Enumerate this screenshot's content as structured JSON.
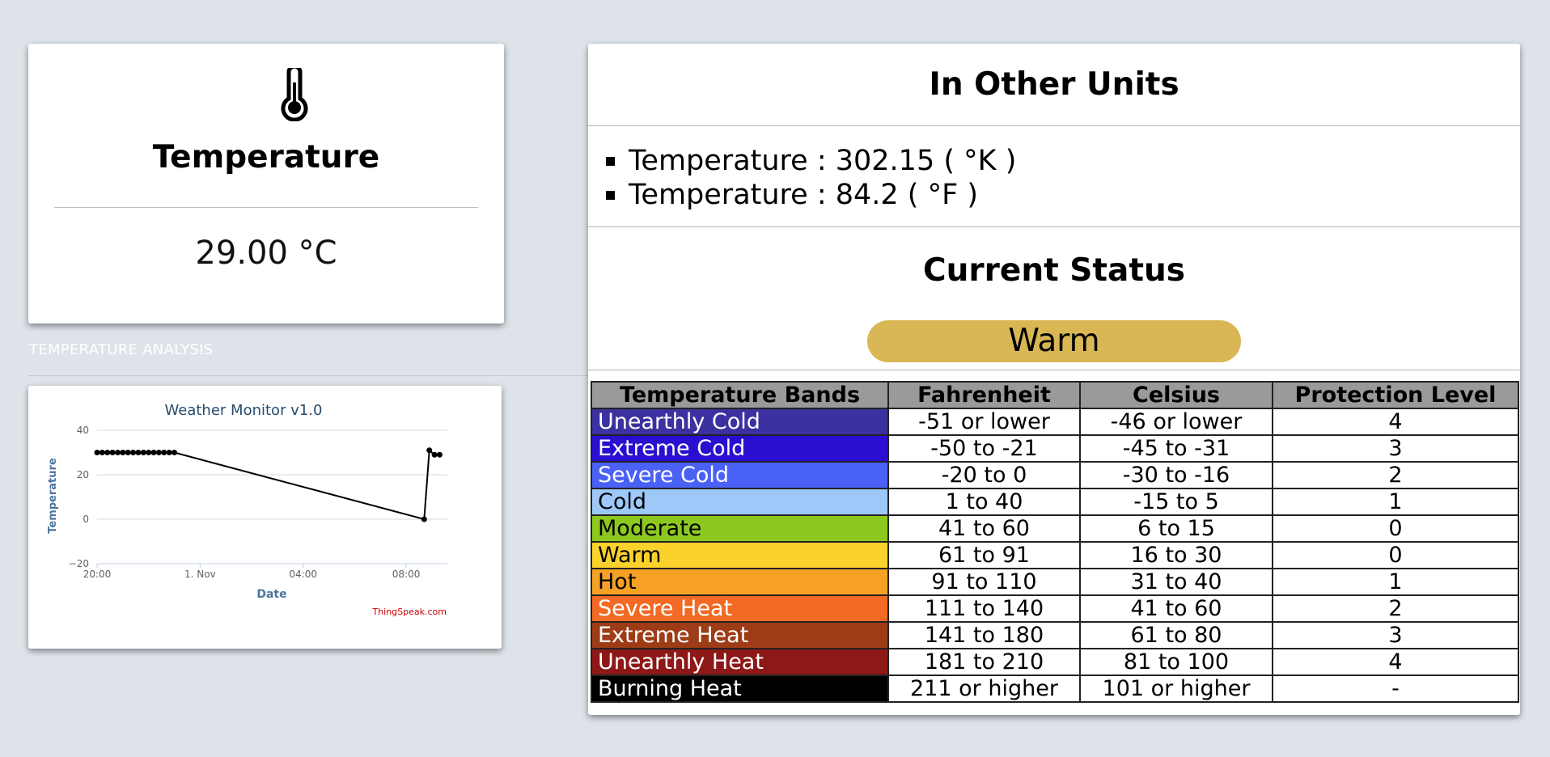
{
  "temperature_card": {
    "icon": "thermometer-icon",
    "title": "Temperature",
    "value": "29.00 °C"
  },
  "analysis": {
    "label": "TEMPERATURE ANALYSIS"
  },
  "chart_data": {
    "type": "line",
    "title": "Weather Monitor v1.0",
    "xlabel": "Date",
    "ylabel": "Temperature",
    "ylim": [
      -20,
      40
    ],
    "yticks": [
      "40",
      "20",
      "0",
      "−20"
    ],
    "xticks": [
      "20:00",
      "1. Nov",
      "04:00",
      "08:00"
    ],
    "x_hours": [
      0.0,
      0.2,
      0.4,
      0.6,
      0.8,
      1.0,
      1.2,
      1.4,
      1.6,
      1.8,
      2.0,
      2.2,
      2.4,
      2.6,
      2.8,
      3.0,
      12.7,
      12.9,
      13.1,
      13.3
    ],
    "y": [
      30,
      30,
      30,
      30,
      30,
      30,
      30,
      30,
      30,
      30,
      30,
      30,
      30,
      30,
      30,
      30,
      0,
      31,
      29,
      29
    ],
    "grid": true,
    "credit": "ThingSpeak.com",
    "line_color": "#000000"
  },
  "other_units": {
    "title": "In Other Units",
    "items": [
      "Temperature : 302.15 ( °K )",
      "Temperature : 84.2 ( °F )"
    ]
  },
  "status": {
    "title": "Current Status",
    "badge": "Warm",
    "badge_color": "#d9b755"
  },
  "bands": {
    "headers": [
      "Temperature Bands",
      "Fahrenheit",
      "Celsius",
      "Protection Level"
    ],
    "rows": [
      {
        "band": "Unearthly Cold",
        "f": "-51 or lower",
        "c": "-46 or lower",
        "level": "4",
        "color": "#3b31a0",
        "text_color": "#ffffff"
      },
      {
        "band": "Extreme Cold",
        "f": "-50 to -21",
        "c": "-45 to -31",
        "level": "3",
        "color": "#2a0fd0",
        "text_color": "#ffffff"
      },
      {
        "band": "Severe Cold",
        "f": "-20 to 0",
        "c": "-30 to -16",
        "level": "2",
        "color": "#4a61f5",
        "text_color": "#ffffff"
      },
      {
        "band": "Cold",
        "f": "1 to 40",
        "c": "-15 to 5",
        "level": "1",
        "color": "#9ec8f8",
        "text_color": "#000000"
      },
      {
        "band": "Moderate",
        "f": "41 to 60",
        "c": "6 to 15",
        "level": "0",
        "color": "#8cc81e",
        "text_color": "#000000"
      },
      {
        "band": "Warm",
        "f": "61 to 91",
        "c": "16 to 30",
        "level": "0",
        "color": "#fbd22c",
        "text_color": "#000000"
      },
      {
        "band": "Hot",
        "f": "91 to 110",
        "c": "31 to 40",
        "level": "1",
        "color": "#f7a124",
        "text_color": "#000000"
      },
      {
        "band": "Severe Heat",
        "f": "111 to 140",
        "c": "41 to 60",
        "level": "2",
        "color": "#f36a24",
        "text_color": "#ffffff"
      },
      {
        "band": "Extreme Heat",
        "f": "141 to 180",
        "c": "61 to 80",
        "level": "3",
        "color": "#9d3c16",
        "text_color": "#ffffff"
      },
      {
        "band": "Unearthly Heat",
        "f": "181 to 210",
        "c": "81 to 100",
        "level": "4",
        "color": "#8e1717",
        "text_color": "#ffffff"
      },
      {
        "band": "Burning Heat",
        "f": "211 or higher",
        "c": "101 or higher",
        "level": "-",
        "color": "#000000",
        "text_color": "#ffffff"
      }
    ]
  }
}
